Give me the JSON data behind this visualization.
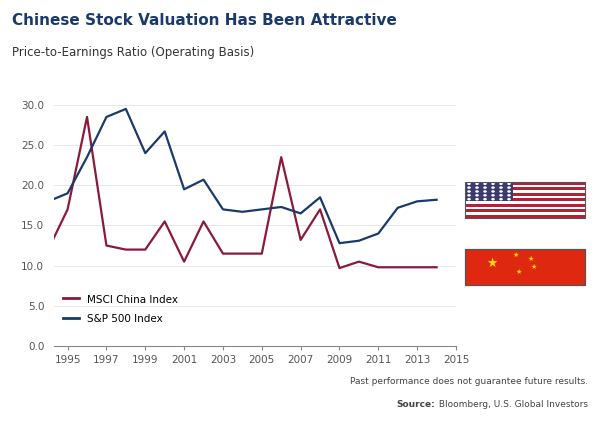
{
  "title": "Chinese Stock Valuation Has Been Attractive",
  "subtitle": "Price-to-Earnings Ratio (Operating Basis)",
  "source_line1": "Past performance does not guarantee future results.",
  "source_line2_bold": "Source:",
  "source_line2_normal": " Bloomberg, U.S. Global Investors",
  "xlim": [
    1994.3,
    2014.8
  ],
  "ylim": [
    0.0,
    31.5
  ],
  "yticks": [
    0.0,
    5.0,
    10.0,
    15.0,
    20.0,
    25.0,
    30.0
  ],
  "xticks": [
    1995,
    1997,
    1999,
    2001,
    2003,
    2005,
    2007,
    2009,
    2011,
    2013,
    2015
  ],
  "china_color": "#8B1A3A",
  "sp500_color": "#1A3A6B",
  "title_color": "#1A3A6B",
  "background_color": "#FFFFFF",
  "legend_label_china": "MSCI China Index",
  "legend_label_sp500": "S&P 500 Index",
  "china_years": [
    1994,
    1995,
    1996,
    1997,
    1998,
    1999,
    2000,
    2001,
    2002,
    2003,
    2004,
    2005,
    2006,
    2007,
    2008,
    2009,
    2010,
    2011,
    2012,
    2013,
    2014
  ],
  "china_values": [
    12.0,
    17.0,
    28.5,
    12.5,
    12.0,
    12.0,
    15.5,
    10.5,
    15.5,
    11.5,
    11.5,
    11.5,
    23.5,
    13.2,
    17.0,
    9.7,
    10.5,
    9.8,
    9.8,
    9.8,
    9.8
  ],
  "sp500_years": [
    1994,
    1995,
    1996,
    1997,
    1998,
    1999,
    2000,
    2001,
    2002,
    2003,
    2004,
    2005,
    2006,
    2007,
    2008,
    2009,
    2010,
    2011,
    2012,
    2013,
    2014
  ],
  "sp500_values": [
    18.0,
    19.0,
    23.5,
    28.5,
    29.5,
    24.0,
    26.7,
    19.5,
    20.7,
    17.0,
    16.7,
    17.0,
    17.3,
    16.5,
    18.5,
    12.8,
    13.1,
    14.0,
    17.2,
    18.0,
    18.2
  ],
  "us_flag_y_data": 18.2,
  "cn_flag_y_data": 9.8,
  "grid_color": "#DDDDDD",
  "tick_color": "#888888",
  "spine_color": "#888888"
}
